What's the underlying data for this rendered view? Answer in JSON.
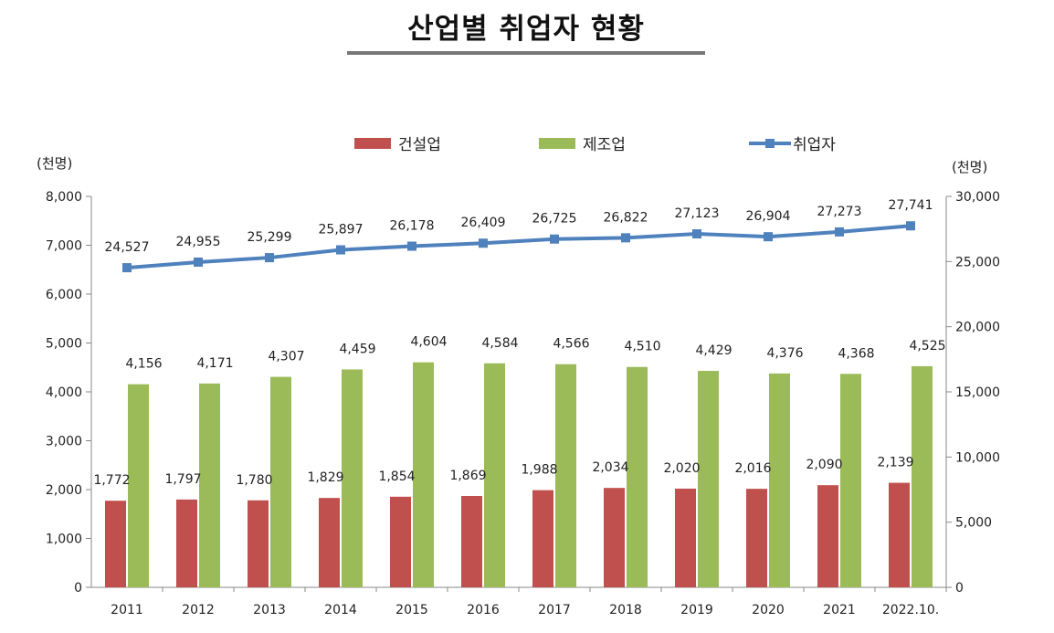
{
  "title": "산업별 취업자 현황",
  "chart_data": {
    "type": "bar",
    "categories": [
      "2011",
      "2012",
      "2013",
      "2014",
      "2015",
      "2016",
      "2017",
      "2018",
      "2019",
      "2020",
      "2021",
      "2022.10."
    ],
    "series": [
      {
        "name": "건설업",
        "type": "bar",
        "axis": "left",
        "color": "#c0504d",
        "values": [
          1772,
          1797,
          1780,
          1829,
          1854,
          1869,
          1988,
          2034,
          2020,
          2016,
          2090,
          2139
        ],
        "labels": [
          "1,772",
          "1,797",
          "1,780",
          "1,829",
          "1,854",
          "1,869",
          "1,988",
          "2,034",
          "2,020",
          "2,016",
          "2,090",
          "2,139"
        ]
      },
      {
        "name": "제조업",
        "type": "bar",
        "axis": "left",
        "color": "#9bbb59",
        "values": [
          4156,
          4171,
          4307,
          4459,
          4604,
          4584,
          4566,
          4510,
          4429,
          4376,
          4368,
          4525
        ],
        "labels": [
          "4,156",
          "4,171",
          "4,307",
          "4,459",
          "4,604",
          "4,584",
          "4,566",
          "4,510",
          "4,429",
          "4,376",
          "4,368",
          "4,525"
        ]
      },
      {
        "name": "취업자",
        "type": "line",
        "axis": "right",
        "color": "#4f81bd",
        "values": [
          24527,
          24955,
          25299,
          25897,
          26178,
          26409,
          26725,
          26822,
          27123,
          26904,
          27273,
          27741
        ],
        "labels": [
          "24,527",
          "24,955",
          "25,299",
          "25,897",
          "26,178",
          "26,409",
          "26,725",
          "26,822",
          "27,123",
          "26,904",
          "27,273",
          "27,741"
        ]
      }
    ],
    "y_left": {
      "unit": "(천명)",
      "ylim": [
        0,
        8000
      ],
      "ticks": [
        "0",
        "1,000",
        "2,000",
        "3,000",
        "4,000",
        "5,000",
        "6,000",
        "7,000",
        "8,000"
      ]
    },
    "y_right": {
      "unit": "(천명)",
      "ylim": [
        0,
        30000
      ],
      "ticks": [
        "0",
        "5,000",
        "10,000",
        "15,000",
        "20,000",
        "25,000",
        "30,000"
      ]
    },
    "grid": false,
    "legend_position": "top"
  }
}
